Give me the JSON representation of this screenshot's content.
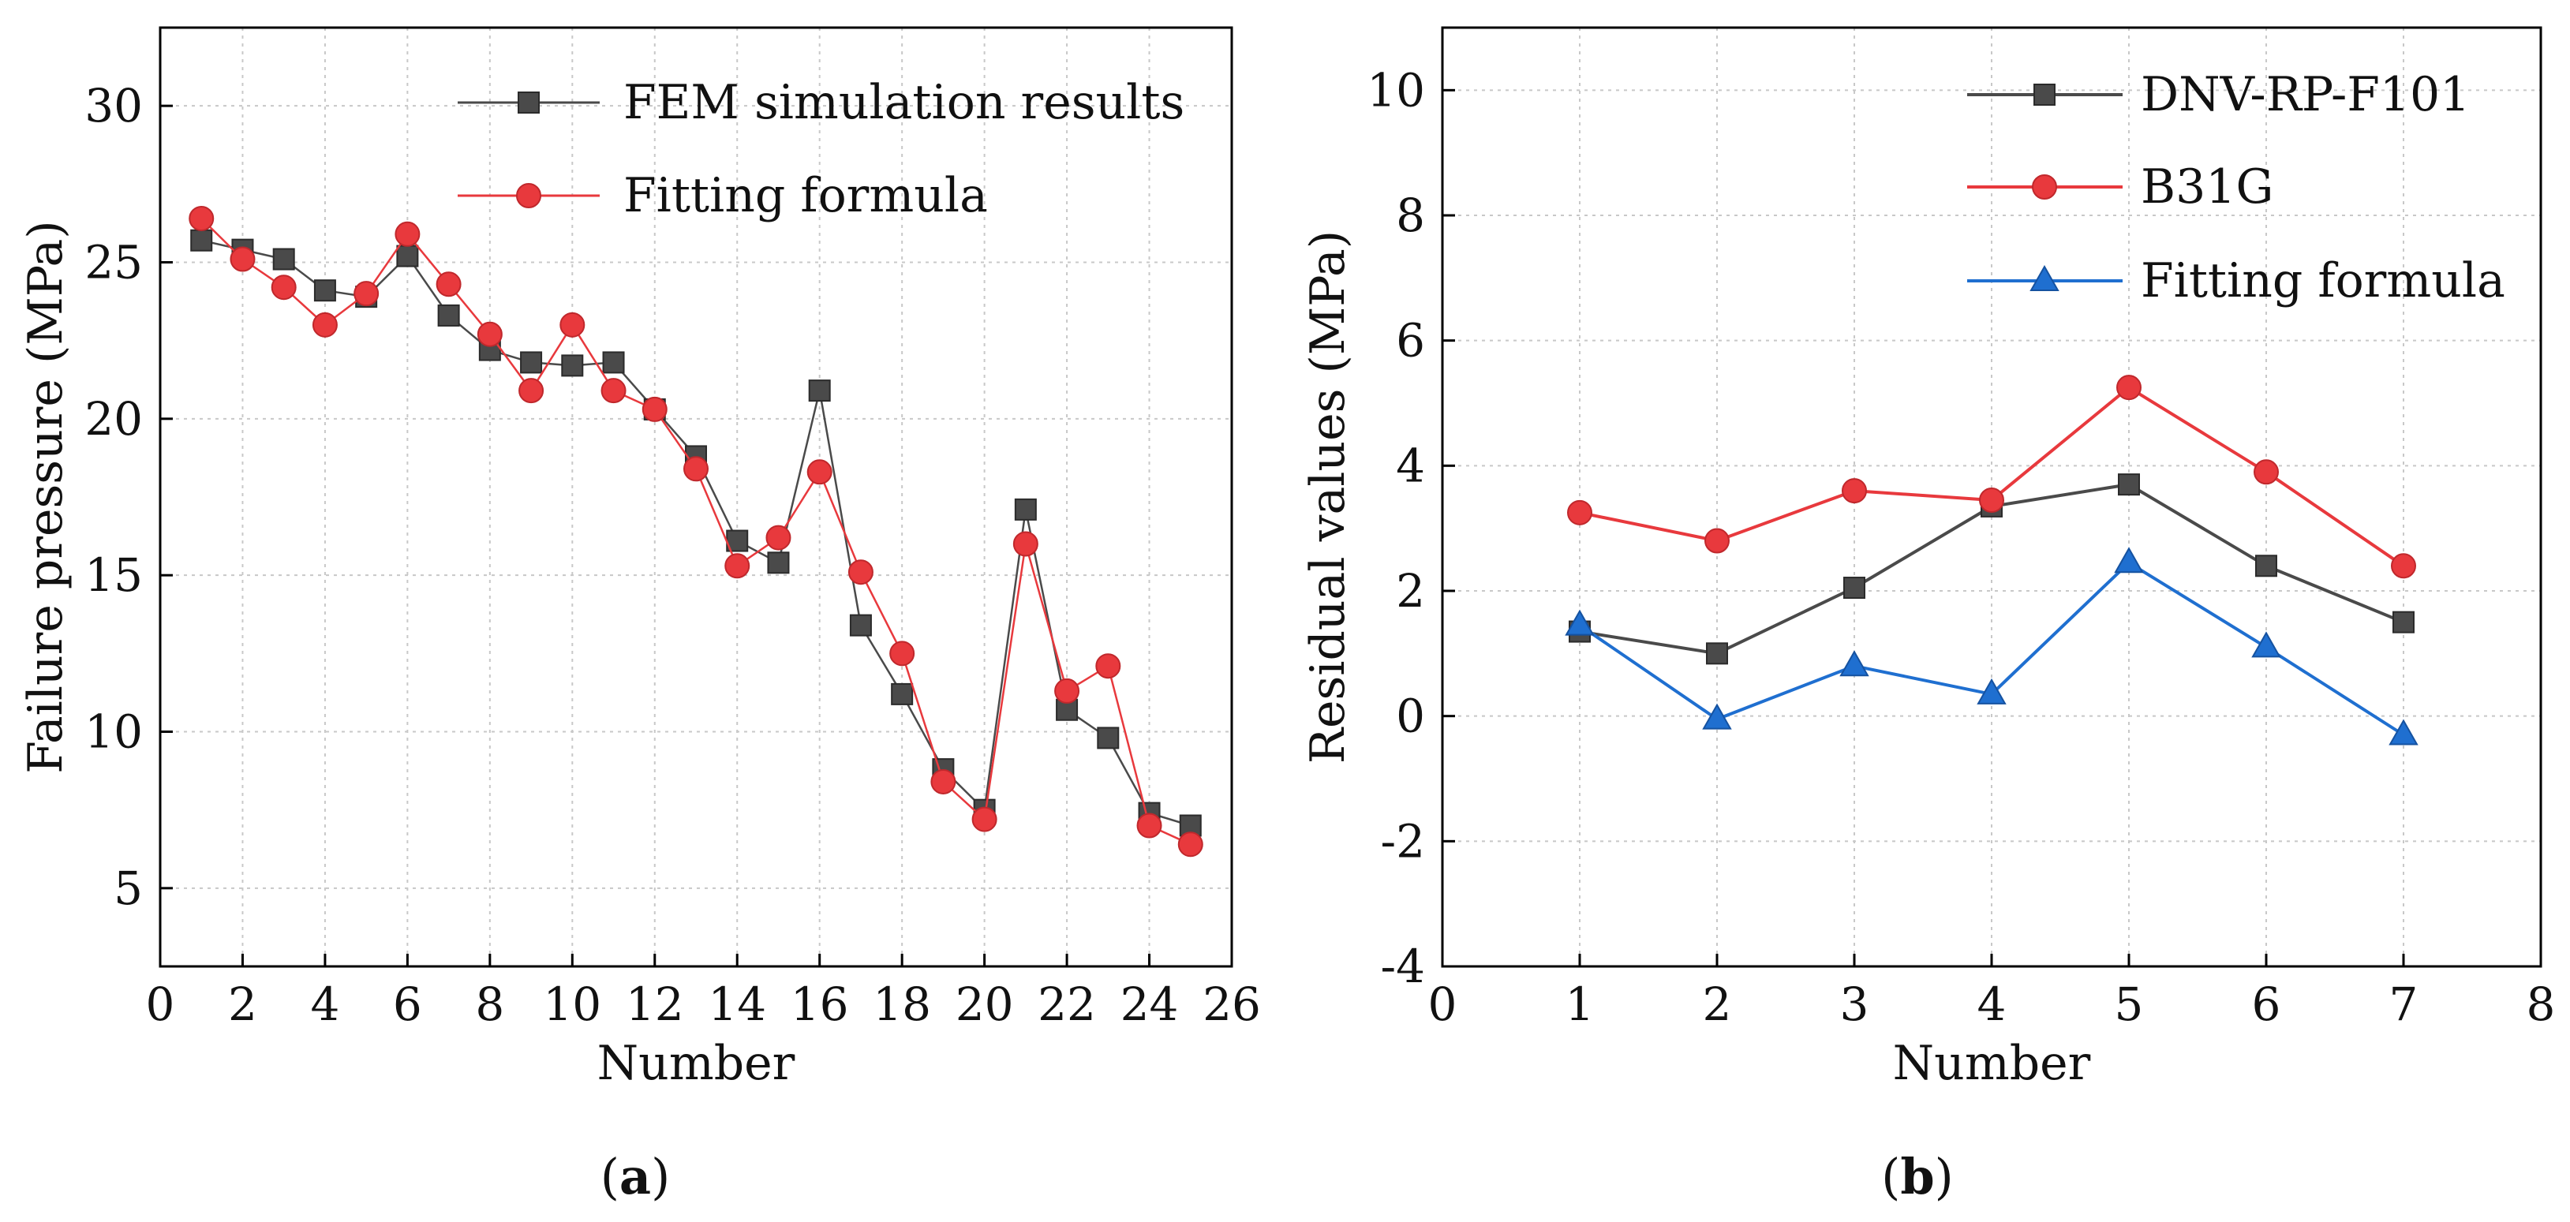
{
  "chart_data": [
    {
      "id": "a",
      "panel_label": "a",
      "type": "line",
      "xlabel": "Number",
      "ylabel": "Failure pressure (MPa)",
      "xlim": [
        0,
        26
      ],
      "ylim": [
        2.5,
        32.5
      ],
      "xticks": [
        0,
        2,
        4,
        6,
        8,
        10,
        12,
        14,
        16,
        18,
        20,
        22,
        24,
        26
      ],
      "yticks": [
        5,
        10,
        15,
        20,
        25,
        30
      ],
      "grid": true,
      "legend_position": "top-right",
      "x": [
        1,
        2,
        3,
        4,
        5,
        6,
        7,
        8,
        9,
        10,
        11,
        12,
        13,
        14,
        15,
        16,
        17,
        18,
        19,
        20,
        21,
        22,
        23,
        24,
        25
      ],
      "series": [
        {
          "name": "FEM simulation results",
          "color": "#4a4a4a",
          "marker": "square",
          "values": [
            25.7,
            25.4,
            25.1,
            24.1,
            23.9,
            25.2,
            23.3,
            22.2,
            21.8,
            21.7,
            21.8,
            20.3,
            18.8,
            16.1,
            15.4,
            20.9,
            13.4,
            11.2,
            8.8,
            7.5,
            17.1,
            10.7,
            9.8,
            7.4,
            7.0
          ]
        },
        {
          "name": "Fitting formula",
          "color": "#e8393d",
          "marker": "circle",
          "values": [
            26.4,
            25.1,
            24.2,
            23.0,
            24.0,
            25.9,
            24.3,
            22.7,
            20.9,
            23.0,
            20.9,
            20.3,
            18.4,
            15.3,
            16.2,
            18.3,
            15.1,
            12.5,
            8.4,
            7.2,
            16.0,
            11.3,
            12.1,
            7.0,
            6.4
          ]
        }
      ]
    },
    {
      "id": "b",
      "panel_label": "b",
      "type": "line",
      "xlabel": "Number",
      "ylabel": "Residual values (MPa)",
      "xlim": [
        0,
        8
      ],
      "ylim": [
        -4,
        11
      ],
      "xticks": [
        0,
        1,
        2,
        3,
        4,
        5,
        6,
        7,
        8
      ],
      "yticks": [
        -4,
        -2,
        0,
        2,
        4,
        6,
        8,
        10
      ],
      "grid": true,
      "legend_position": "top-right",
      "x": [
        1,
        2,
        3,
        4,
        5,
        6,
        7
      ],
      "series": [
        {
          "name": "DNV-RP-F101",
          "color": "#4a4a4a",
          "marker": "square",
          "values": [
            1.35,
            1.0,
            2.05,
            3.35,
            3.7,
            2.4,
            1.5
          ]
        },
        {
          "name": "B31G",
          "color": "#e8393d",
          "marker": "circle",
          "values": [
            3.25,
            2.8,
            3.6,
            3.45,
            5.25,
            3.9,
            2.4
          ]
        },
        {
          "name": "Fitting formula",
          "color": "#1f6fd0",
          "marker": "triangle",
          "values": [
            1.45,
            -0.05,
            0.8,
            0.35,
            2.45,
            1.1,
            -0.3
          ]
        }
      ]
    }
  ]
}
